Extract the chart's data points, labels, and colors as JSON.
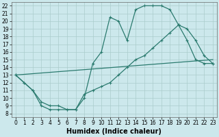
{
  "title": "",
  "xlabel": "Humidex (Indice chaleur)",
  "bg_color": "#cce8ec",
  "grid_color": "#aacccc",
  "line_color": "#2a7a6e",
  "xlim": [
    -0.5,
    23.5
  ],
  "ylim": [
    7.5,
    22.5
  ],
  "xticks": [
    0,
    1,
    2,
    3,
    4,
    5,
    6,
    7,
    8,
    9,
    10,
    11,
    12,
    13,
    14,
    15,
    16,
    17,
    18,
    19,
    20,
    21,
    22,
    23
  ],
  "yticks": [
    8,
    9,
    10,
    11,
    12,
    13,
    14,
    15,
    16,
    17,
    18,
    19,
    20,
    21,
    22
  ],
  "line1_x": [
    0,
    1,
    2,
    3,
    4,
    5,
    6,
    7,
    8,
    9,
    10,
    11,
    12,
    13,
    14,
    15,
    16,
    17,
    18,
    19,
    20,
    21,
    22,
    23
  ],
  "line1_y": [
    13,
    12,
    11,
    9,
    8.5,
    8.5,
    8.5,
    8.5,
    10,
    14.5,
    16,
    20.5,
    20,
    17.5,
    21.5,
    22,
    22,
    22,
    21.5,
    19.5,
    17.5,
    15,
    14.5,
    14.5
  ],
  "line2_x": [
    0,
    1,
    2,
    3,
    4,
    5,
    6,
    7,
    8,
    9,
    10,
    11,
    12,
    13,
    14,
    15,
    16,
    17,
    18,
    19,
    20,
    21,
    22,
    23
  ],
  "line2_y": [
    13,
    12,
    11,
    9.5,
    9,
    9,
    8.5,
    8.5,
    10.5,
    11,
    11.5,
    12,
    13,
    14,
    15,
    15.5,
    16.5,
    17.5,
    18.5,
    19.5,
    19,
    17.5,
    15.5,
    14.5
  ],
  "line3_x": [
    0,
    23
  ],
  "line3_y": [
    13,
    15
  ],
  "marker": "+",
  "markersize": 3,
  "linewidth": 0.9,
  "xlabel_fontsize": 7,
  "tick_fontsize": 5.5
}
